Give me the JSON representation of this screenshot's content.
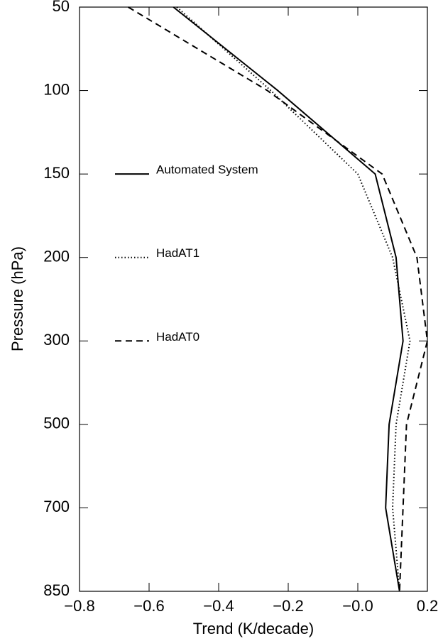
{
  "chart_data": {
    "type": "line",
    "orientation": "horizontal",
    "x_label": "Trend (K/decade)",
    "y_label": "Pressure (hPa)",
    "categories": [
      "50",
      "100",
      "150",
      "200",
      "300",
      "500",
      "700",
      "850"
    ],
    "xlim": [
      -0.8,
      0.2
    ],
    "xticks": [
      {
        "value": -0.8,
        "label": "−0.8"
      },
      {
        "value": -0.6,
        "label": "−0.6"
      },
      {
        "value": -0.4,
        "label": "−0.4"
      },
      {
        "value": -0.2,
        "label": "−0.2"
      },
      {
        "value": 0,
        "label": "−0.0"
      },
      0.2
    ],
    "series": [
      {
        "name": "Automated System",
        "color": "#000000",
        "dash": "solid",
        "values": [
          -0.53,
          -0.23,
          0.05,
          0.11,
          0.13,
          0.09,
          0.08,
          0.12
        ]
      },
      {
        "name": "HadAT1",
        "color": "#000000",
        "dash": "dotted",
        "values": [
          -0.52,
          -0.25,
          0.0,
          0.1,
          0.15,
          0.11,
          0.1,
          0.12
        ]
      },
      {
        "name": "HadAT0",
        "color": "#000000",
        "dash": "dashed",
        "values": [
          -0.66,
          -0.26,
          0.07,
          0.17,
          0.2,
          0.14,
          0.13,
          0.12
        ]
      }
    ]
  }
}
